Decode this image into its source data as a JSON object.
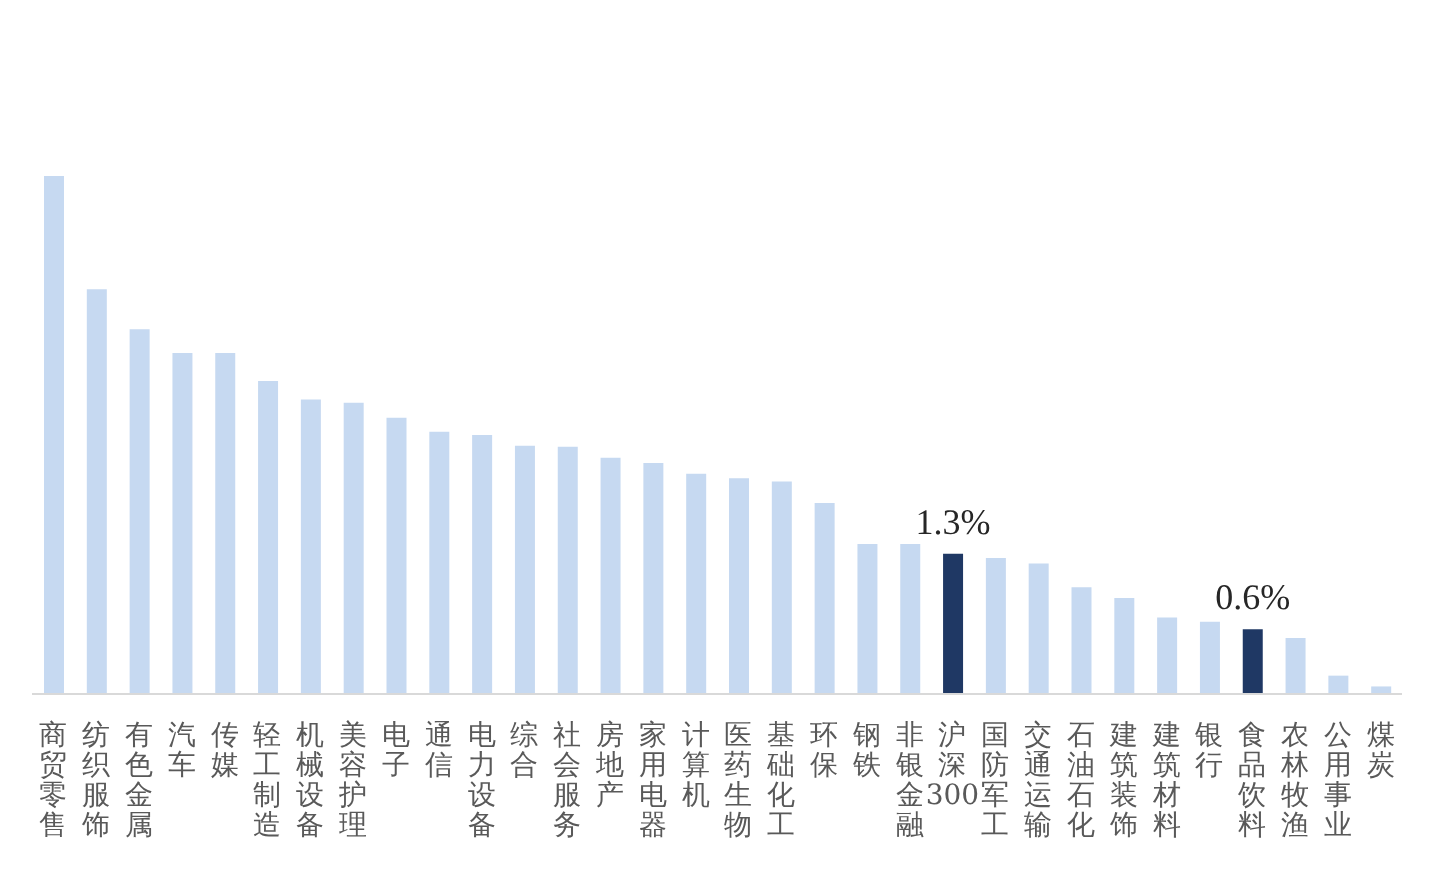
{
  "chart_data": {
    "type": "bar",
    "categories": [
      "商贸零售",
      "纺织服饰",
      "有色金属",
      "汽车",
      "传媒",
      "轻工制造",
      "机械设备",
      "美容护理",
      "电子",
      "通信",
      "电力设备",
      "综合",
      "社会服务",
      "房地产",
      "家用电器",
      "计算机",
      "医药生物",
      "基础化工",
      "环保",
      "钢铁",
      "非银金融",
      "沪深300",
      "国防军工",
      "交通运输",
      "石油石化",
      "建筑装饰",
      "建筑材料",
      "银行",
      "食品饮料",
      "农林牧渔",
      "公用事业",
      "煤炭"
    ],
    "values": [
      4.8,
      3.75,
      3.38,
      3.16,
      3.16,
      2.9,
      2.73,
      2.7,
      2.56,
      2.43,
      2.4,
      2.3,
      2.29,
      2.19,
      2.14,
      2.04,
      2.0,
      1.97,
      1.77,
      1.39,
      1.39,
      1.3,
      1.26,
      1.21,
      0.99,
      0.89,
      0.71,
      0.67,
      0.6,
      0.52,
      0.17,
      0.07
    ],
    "colors": [
      "#c6d9f1",
      "#c6d9f1",
      "#c6d9f1",
      "#c6d9f1",
      "#c6d9f1",
      "#c6d9f1",
      "#c6d9f1",
      "#c6d9f1",
      "#c6d9f1",
      "#c6d9f1",
      "#c6d9f1",
      "#c6d9f1",
      "#c6d9f1",
      "#c6d9f1",
      "#c6d9f1",
      "#c6d9f1",
      "#c6d9f1",
      "#c6d9f1",
      "#c6d9f1",
      "#c6d9f1",
      "#c6d9f1",
      "#1f3864",
      "#c6d9f1",
      "#c6d9f1",
      "#c6d9f1",
      "#c6d9f1",
      "#c6d9f1",
      "#c6d9f1",
      "#1f3864",
      "#c6d9f1",
      "#c6d9f1",
      "#c6d9f1"
    ],
    "value_labels": [
      null,
      null,
      null,
      null,
      null,
      null,
      null,
      null,
      null,
      null,
      null,
      null,
      null,
      null,
      null,
      null,
      null,
      null,
      null,
      null,
      null,
      "1.3%",
      null,
      null,
      null,
      null,
      null,
      null,
      "0.6%",
      null,
      null,
      null
    ],
    "tick_labels": "x",
    "grid": false,
    "legend": false
  }
}
